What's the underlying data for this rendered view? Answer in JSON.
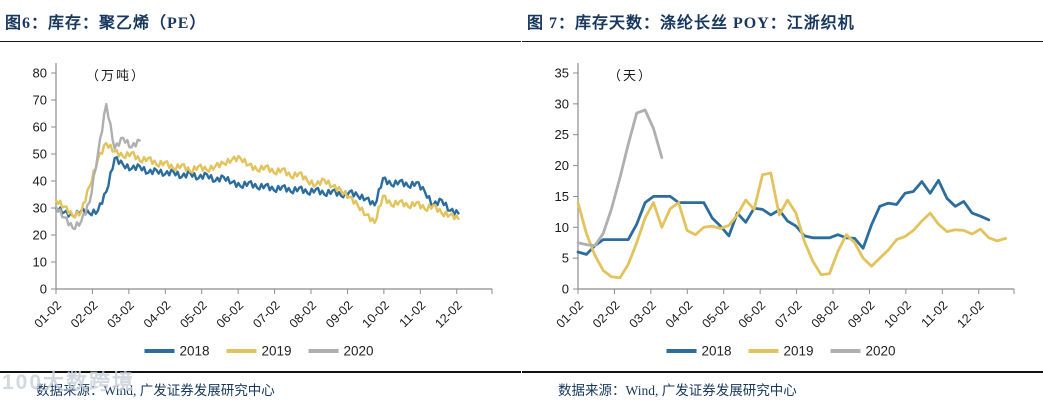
{
  "watermark": "100大数跨境",
  "colors": {
    "title_navy": "#17375E",
    "axis_gray": "#8c8c8c",
    "series_2018_blue": "#2C6D9E",
    "series_2019_yellow": "#E2C35C",
    "series_2020_gray": "#AFAFAF"
  },
  "chart_data": [
    {
      "type": "line",
      "title": "图6：库存：聚乙烯（PE）",
      "unit_label": "（万吨）",
      "source": "数据来源：Wind, 广发证券发展研究中心",
      "ylim": [
        0,
        80
      ],
      "ytick_labels": [
        0,
        10,
        20,
        30,
        40,
        50,
        60,
        70,
        80
      ],
      "x_tick_labels": [
        "01-02",
        "02-02",
        "03-02",
        "04-02",
        "05-02",
        "06-02",
        "07-02",
        "08-02",
        "09-02",
        "10-02",
        "11-02",
        "12-02"
      ],
      "grid": false,
      "legend_position": "bottom",
      "jitter": 0.9,
      "series": [
        {
          "name": "2018",
          "color": "#2C6D9E",
          "values": [
            30,
            28.5,
            27,
            29,
            28,
            29,
            36,
            48.5,
            46,
            44.5,
            45.5,
            43,
            44,
            42.5,
            43.5,
            41.5,
            43,
            41,
            42.5,
            40,
            41.5,
            39.5,
            38,
            39.5,
            37.5,
            38.5,
            36.5,
            38,
            36,
            37.5,
            35.5,
            37,
            35,
            36.5,
            34.5,
            36,
            34.5,
            33.5,
            31,
            41,
            38.5,
            40,
            38,
            39.5,
            36,
            31,
            33,
            29,
            28
          ]
        },
        {
          "name": "2019",
          "color": "#E2C35C",
          "values": [
            33,
            30.5,
            27,
            28.5,
            38,
            48,
            54,
            51,
            49,
            50.5,
            47.5,
            48.5,
            46,
            47,
            44.5,
            46,
            43.5,
            45.5,
            44,
            45.5,
            46.5,
            48,
            48.5,
            46,
            44,
            45.5,
            43,
            44.5,
            41.5,
            43,
            40,
            38.5,
            40.5,
            38,
            36.5,
            34,
            31,
            27.5,
            24.5,
            34.5,
            31,
            32.5,
            30.5,
            32,
            29.5,
            31,
            28,
            27.5,
            26
          ]
        },
        {
          "name": "2020",
          "color": "#AFAFAF",
          "values": [
            30.5,
            26.5,
            22.5,
            25,
            32,
            50,
            68.5,
            52,
            56,
            52.5,
            55
          ]
        }
      ]
    },
    {
      "type": "line",
      "title": "图 7：库存天数：涤纶长丝 POY：江浙织机",
      "unit_label": "（天）",
      "source": "数据来源：Wind, 广发证券发展研究中心",
      "ylim": [
        0,
        35
      ],
      "ytick_labels": [
        0,
        5,
        10,
        15,
        20,
        25,
        30,
        35
      ],
      "x_tick_labels": [
        "01-02",
        "02-02",
        "03-02",
        "04-02",
        "05-02",
        "06-02",
        "07-02",
        "08-02",
        "09-02",
        "10-02",
        "11-02",
        "12-02"
      ],
      "grid": false,
      "legend_position": "bottom",
      "jitter": 0,
      "series": [
        {
          "name": "2018",
          "color": "#2C6D9E",
          "values": [
            6,
            5.6,
            7,
            8,
            8,
            8,
            8,
            10.5,
            14,
            15,
            15,
            15,
            14,
            14,
            14,
            14,
            11.5,
            10.2,
            8.6,
            12.3,
            10.8,
            13.1,
            12.9,
            12,
            12.8,
            11,
            10.2,
            8.6,
            8.3,
            8.3,
            8.3,
            8.8,
            8.3,
            8.2,
            6.6,
            10.4,
            13.4,
            13.9,
            13.7,
            15.5,
            15.8,
            17.4,
            15.5,
            17.6,
            14.7,
            13.4,
            14.2,
            12.3,
            11.8,
            11.2
          ]
        },
        {
          "name": "2019",
          "color": "#E2C35C",
          "values": [
            14,
            9,
            5.5,
            3,
            2,
            1.8,
            4,
            7.5,
            11.5,
            14,
            10,
            13,
            14,
            9.5,
            8.8,
            10,
            10.2,
            9.8,
            10.3,
            12,
            14.4,
            12.9,
            18.5,
            18.8,
            12,
            14.4,
            12.3,
            7.7,
            4.5,
            2.3,
            2.5,
            6.1,
            8.8,
            7.5,
            5,
            3.7,
            5,
            6.3,
            8,
            8.5,
            9.5,
            11,
            12.3,
            10.5,
            9.3,
            9.6,
            9.5,
            8.9,
            9.7,
            8.3,
            7.8,
            8.2
          ]
        },
        {
          "name": "2020",
          "color": "#AFAFAF",
          "values": [
            7.5,
            7.2,
            7,
            9,
            13,
            18,
            23.5,
            28.5,
            29,
            26,
            21.3
          ]
        }
      ]
    }
  ]
}
